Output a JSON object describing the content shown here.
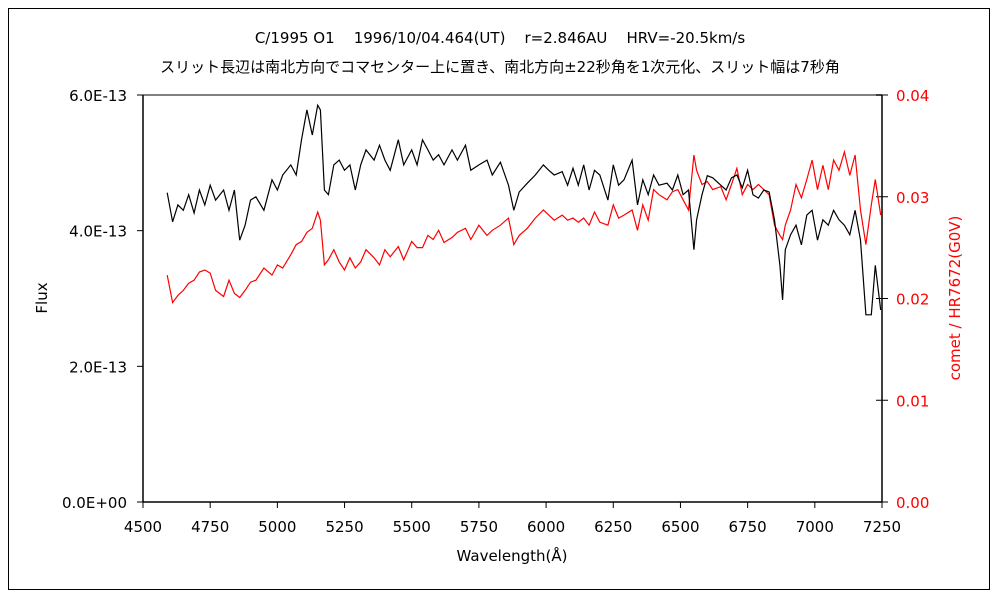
{
  "chart_data": {
    "type": "line",
    "title": "C/1995 O1    1996/10/04.464(UT)    r=2.846AU    HRV=-20.5km/s",
    "subtitle": "スリット長辺は南北方向でコマセンター上に置き、南北方向±22秒角を1次元化、スリット幅は7秒角",
    "xlabel": "Wavelength(Å)",
    "ylabel": "Flux",
    "y2label": "comet / HR7672(G0V)",
    "xlim": [
      4500,
      7250
    ],
    "ylim": [
      0,
      6e-13
    ],
    "y2lim": [
      0,
      0.04
    ],
    "grid": false,
    "x_ticks": [
      "4500",
      "4750",
      "5000",
      "5250",
      "5500",
      "5750",
      "6000",
      "6250",
      "6500",
      "6750",
      "7000",
      "7250"
    ],
    "y_ticks": [
      "0.0E+00",
      "2.0E-13",
      "4.0E-13",
      "6.0E-13"
    ],
    "y2_ticks": [
      "0.00",
      "0.01",
      "0.02",
      "0.03",
      "0.04"
    ],
    "colors": {
      "flux": "#000000",
      "ratio": "#ff0000"
    },
    "x": [
      4590,
      4610,
      4630,
      4650,
      4670,
      4690,
      4710,
      4730,
      4750,
      4770,
      4800,
      4820,
      4840,
      4860,
      4880,
      4900,
      4920,
      4950,
      4980,
      5000,
      5020,
      5050,
      5070,
      5090,
      5110,
      5130,
      5150,
      5160,
      5175,
      5190,
      5210,
      5230,
      5250,
      5270,
      5290,
      5310,
      5330,
      5360,
      5380,
      5400,
      5420,
      5450,
      5470,
      5500,
      5520,
      5540,
      5560,
      5580,
      5600,
      5620,
      5650,
      5670,
      5700,
      5720,
      5750,
      5780,
      5800,
      5830,
      5860,
      5880,
      5900,
      5930,
      5960,
      5990,
      6010,
      6030,
      6060,
      6080,
      6100,
      6120,
      6140,
      6160,
      6180,
      6200,
      6230,
      6250,
      6270,
      6290,
      6320,
      6340,
      6360,
      6380,
      6400,
      6420,
      6450,
      6470,
      6490,
      6510,
      6530,
      6550,
      6560,
      6580,
      6600,
      6620,
      6650,
      6670,
      6690,
      6710,
      6730,
      6750,
      6770,
      6790,
      6810,
      6830,
      6850,
      6870,
      6880,
      6890,
      6910,
      6930,
      6950,
      6970,
      6990,
      7010,
      7030,
      7050,
      7070,
      7090,
      7110,
      7130,
      7150,
      7170,
      7190,
      7210,
      7225,
      7245
    ],
    "series": [
      {
        "name": "Flux (E-13)",
        "axis": "left",
        "scale": 1e-13,
        "values": [
          4.56,
          4.13,
          4.38,
          4.3,
          4.53,
          4.26,
          4.6,
          4.38,
          4.67,
          4.45,
          4.6,
          4.3,
          4.6,
          3.86,
          4.08,
          4.45,
          4.5,
          4.3,
          4.75,
          4.6,
          4.82,
          4.97,
          4.82,
          5.34,
          5.78,
          5.41,
          5.85,
          5.78,
          4.6,
          4.53,
          4.97,
          5.04,
          4.89,
          4.97,
          4.6,
          4.97,
          5.19,
          5.04,
          5.26,
          5.04,
          4.89,
          5.34,
          4.97,
          5.19,
          4.97,
          5.34,
          5.19,
          5.04,
          5.12,
          4.97,
          5.19,
          5.04,
          5.26,
          4.89,
          4.97,
          5.04,
          4.82,
          5.01,
          4.67,
          4.3,
          4.57,
          4.7,
          4.82,
          4.97,
          4.89,
          4.82,
          4.87,
          4.67,
          4.92,
          4.67,
          4.97,
          4.6,
          4.89,
          4.82,
          4.45,
          4.97,
          4.67,
          4.75,
          5.04,
          4.38,
          4.75,
          4.53,
          4.82,
          4.67,
          4.7,
          4.6,
          4.82,
          4.53,
          4.6,
          3.72,
          4.16,
          4.53,
          4.81,
          4.78,
          4.67,
          4.6,
          4.78,
          4.82,
          4.63,
          4.89,
          4.53,
          4.48,
          4.6,
          4.57,
          4.16,
          3.49,
          2.98,
          3.72,
          3.94,
          4.08,
          3.79,
          4.23,
          4.3,
          3.86,
          4.16,
          4.08,
          4.3,
          4.16,
          4.08,
          3.94,
          4.3,
          3.86,
          2.76,
          2.76,
          3.49,
          2.83
        ]
      },
      {
        "name": "comet / HR7672(G0V)",
        "axis": "right",
        "scale": 1,
        "values": [
          0.0223,
          0.0196,
          0.0203,
          0.0208,
          0.0215,
          0.0218,
          0.0226,
          0.0228,
          0.0225,
          0.0208,
          0.0202,
          0.0218,
          0.0205,
          0.0201,
          0.0208,
          0.0216,
          0.0218,
          0.023,
          0.0223,
          0.0233,
          0.023,
          0.0243,
          0.0253,
          0.0256,
          0.0265,
          0.0269,
          0.0285,
          0.0277,
          0.0233,
          0.0238,
          0.0248,
          0.0236,
          0.0228,
          0.024,
          0.023,
          0.0236,
          0.0248,
          0.024,
          0.0233,
          0.0248,
          0.0241,
          0.0251,
          0.0238,
          0.0256,
          0.025,
          0.025,
          0.0262,
          0.0258,
          0.0267,
          0.0255,
          0.026,
          0.0265,
          0.0269,
          0.0258,
          0.0272,
          0.0262,
          0.0267,
          0.0272,
          0.0279,
          0.0253,
          0.0262,
          0.0269,
          0.0279,
          0.0287,
          0.0282,
          0.0277,
          0.0282,
          0.0277,
          0.0279,
          0.0275,
          0.0279,
          0.0272,
          0.0285,
          0.0275,
          0.0272,
          0.0292,
          0.0279,
          0.0282,
          0.0287,
          0.0267,
          0.0292,
          0.0277,
          0.0307,
          0.0302,
          0.0297,
          0.0305,
          0.0307,
          0.0297,
          0.0287,
          0.0341,
          0.0326,
          0.0312,
          0.0315,
          0.0307,
          0.031,
          0.0297,
          0.0312,
          0.0328,
          0.0302,
          0.0312,
          0.0307,
          0.0312,
          0.0307,
          0.0302,
          0.0272,
          0.0262,
          0.0258,
          0.0272,
          0.0287,
          0.0312,
          0.0299,
          0.0317,
          0.0336,
          0.0307,
          0.0331,
          0.0307,
          0.0336,
          0.0326,
          0.0344,
          0.0321,
          0.0341,
          0.0287,
          0.0253,
          0.0292,
          0.0317,
          0.0282
        ]
      }
    ]
  }
}
